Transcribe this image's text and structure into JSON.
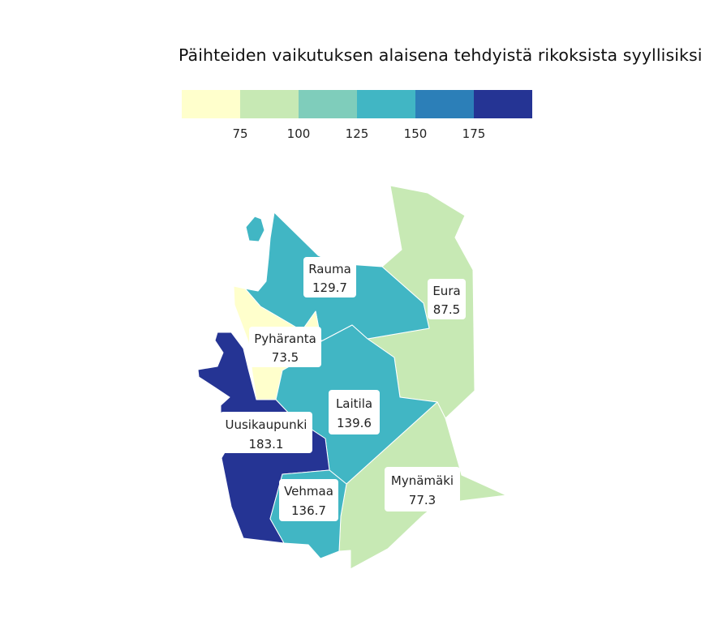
{
  "title": "Päihteiden vaikutuksen alaisena tehdyistä rikoksista syyllisiksi",
  "legend": {
    "colors": [
      "#ffffcc",
      "#c7e9b4",
      "#7fcdbb",
      "#41b6c4",
      "#2c7fb8",
      "#253494"
    ],
    "ticks": [
      "75",
      "100",
      "125",
      "150",
      "175"
    ]
  },
  "chart_data": {
    "type": "choropleth",
    "regions": [
      {
        "name": "Rauma",
        "value": 129.7,
        "label": "129.7",
        "color": "#41b6c4"
      },
      {
        "name": "Eura",
        "value": 87.5,
        "label": "87.5",
        "color": "#c7e9b4"
      },
      {
        "name": "Pyhäranta",
        "value": 73.5,
        "label": "73.5",
        "color": "#ffffcc"
      },
      {
        "name": "Laitila",
        "value": 139.6,
        "label": "139.6",
        "color": "#41b6c4"
      },
      {
        "name": "Uusikaupunki",
        "value": 183.1,
        "label": "183.1",
        "color": "#253494"
      },
      {
        "name": "Mynämäki",
        "value": 77.3,
        "label": "77.3",
        "color": "#c7e9b4"
      },
      {
        "name": "Vehmaa",
        "value": 136.7,
        "label": "136.7",
        "color": "#41b6c4"
      }
    ]
  }
}
